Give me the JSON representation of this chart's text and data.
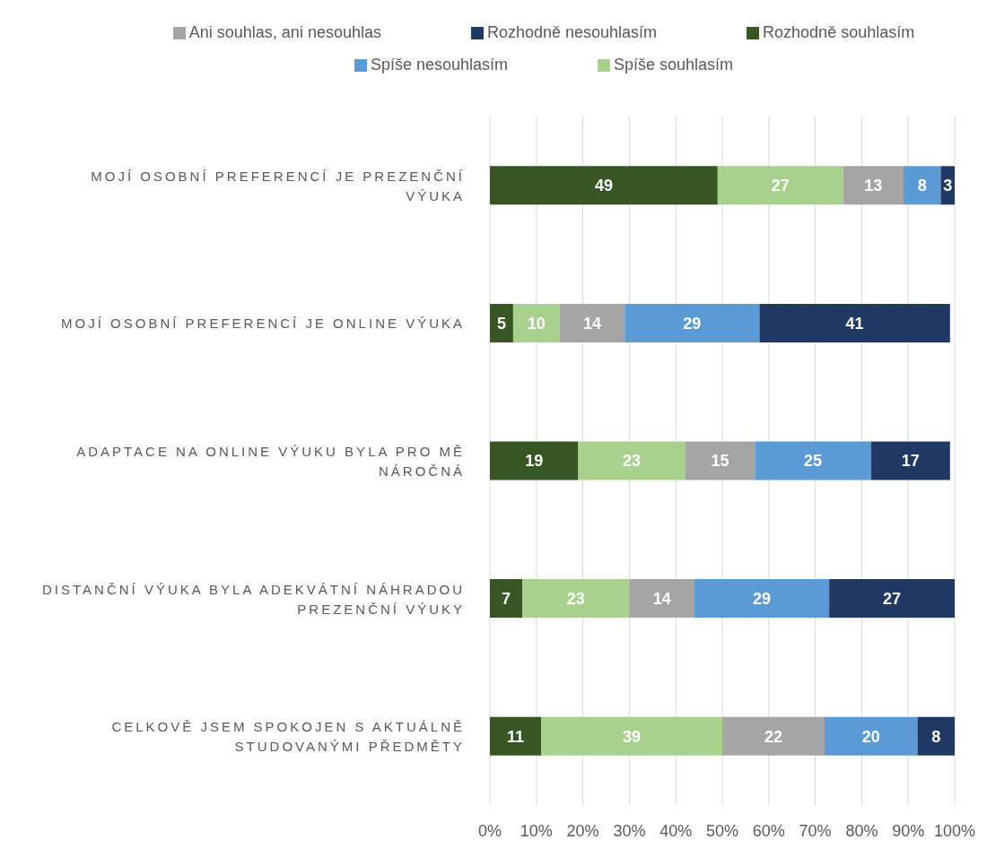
{
  "chart_data": {
    "type": "bar",
    "orientation": "horizontal",
    "stacked": true,
    "categories": [
      "MOJÍ OSOBNÍ PREFERENCÍ JE PREZENČNÍ VÝUKA",
      "MOJÍ OSOBNÍ PREFERENCÍ JE ONLINE VÝUKA",
      "ADAPTACE NA ONLINE VÝUKU BYLA PRO MĚ NÁROČNÁ",
      "DISTANČNÍ VÝUKA BYLA ADEKVÁTNÍ NÁHRADOU PREZENČNÍ VÝUKY",
      "CELKOVĚ JSEM SPOKOJEN S AKTUÁLNĚ STUDOVANÝMI PŘEDMĚTY"
    ],
    "series": [
      {
        "name": "Rozhodně souhlasím",
        "color": "#375623",
        "values": [
          49,
          5,
          19,
          7,
          11
        ]
      },
      {
        "name": "Spíše souhlasím",
        "color": "#a9d18e",
        "values": [
          27,
          10,
          23,
          23,
          39
        ]
      },
      {
        "name": "Ani souhlas, ani nesouhlas",
        "color": "#a5a5a5",
        "values": [
          13,
          14,
          15,
          14,
          22
        ]
      },
      {
        "name": "Spíše nesouhlasím",
        "color": "#5b9bd5",
        "values": [
          8,
          29,
          25,
          29,
          20
        ]
      },
      {
        "name": "Rozhodně nesouhlasím",
        "color": "#203864",
        "values": [
          3,
          41,
          17,
          27,
          8
        ]
      }
    ],
    "xlim": [
      0,
      100
    ],
    "xticks": [
      {
        "value": 0,
        "label": "0%"
      },
      {
        "value": 10,
        "label": "10%"
      },
      {
        "value": 20,
        "label": "20%"
      },
      {
        "value": 30,
        "label": "30%"
      },
      {
        "value": 40,
        "label": "40%"
      },
      {
        "value": 50,
        "label": "50%"
      },
      {
        "value": 60,
        "label": "60%"
      },
      {
        "value": 70,
        "label": "70%"
      },
      {
        "value": 80,
        "label": "80%"
      },
      {
        "value": 90,
        "label": "90%"
      },
      {
        "value": 100,
        "label": "100%"
      }
    ],
    "grid": "x",
    "legend": "top",
    "data_labels": true
  }
}
